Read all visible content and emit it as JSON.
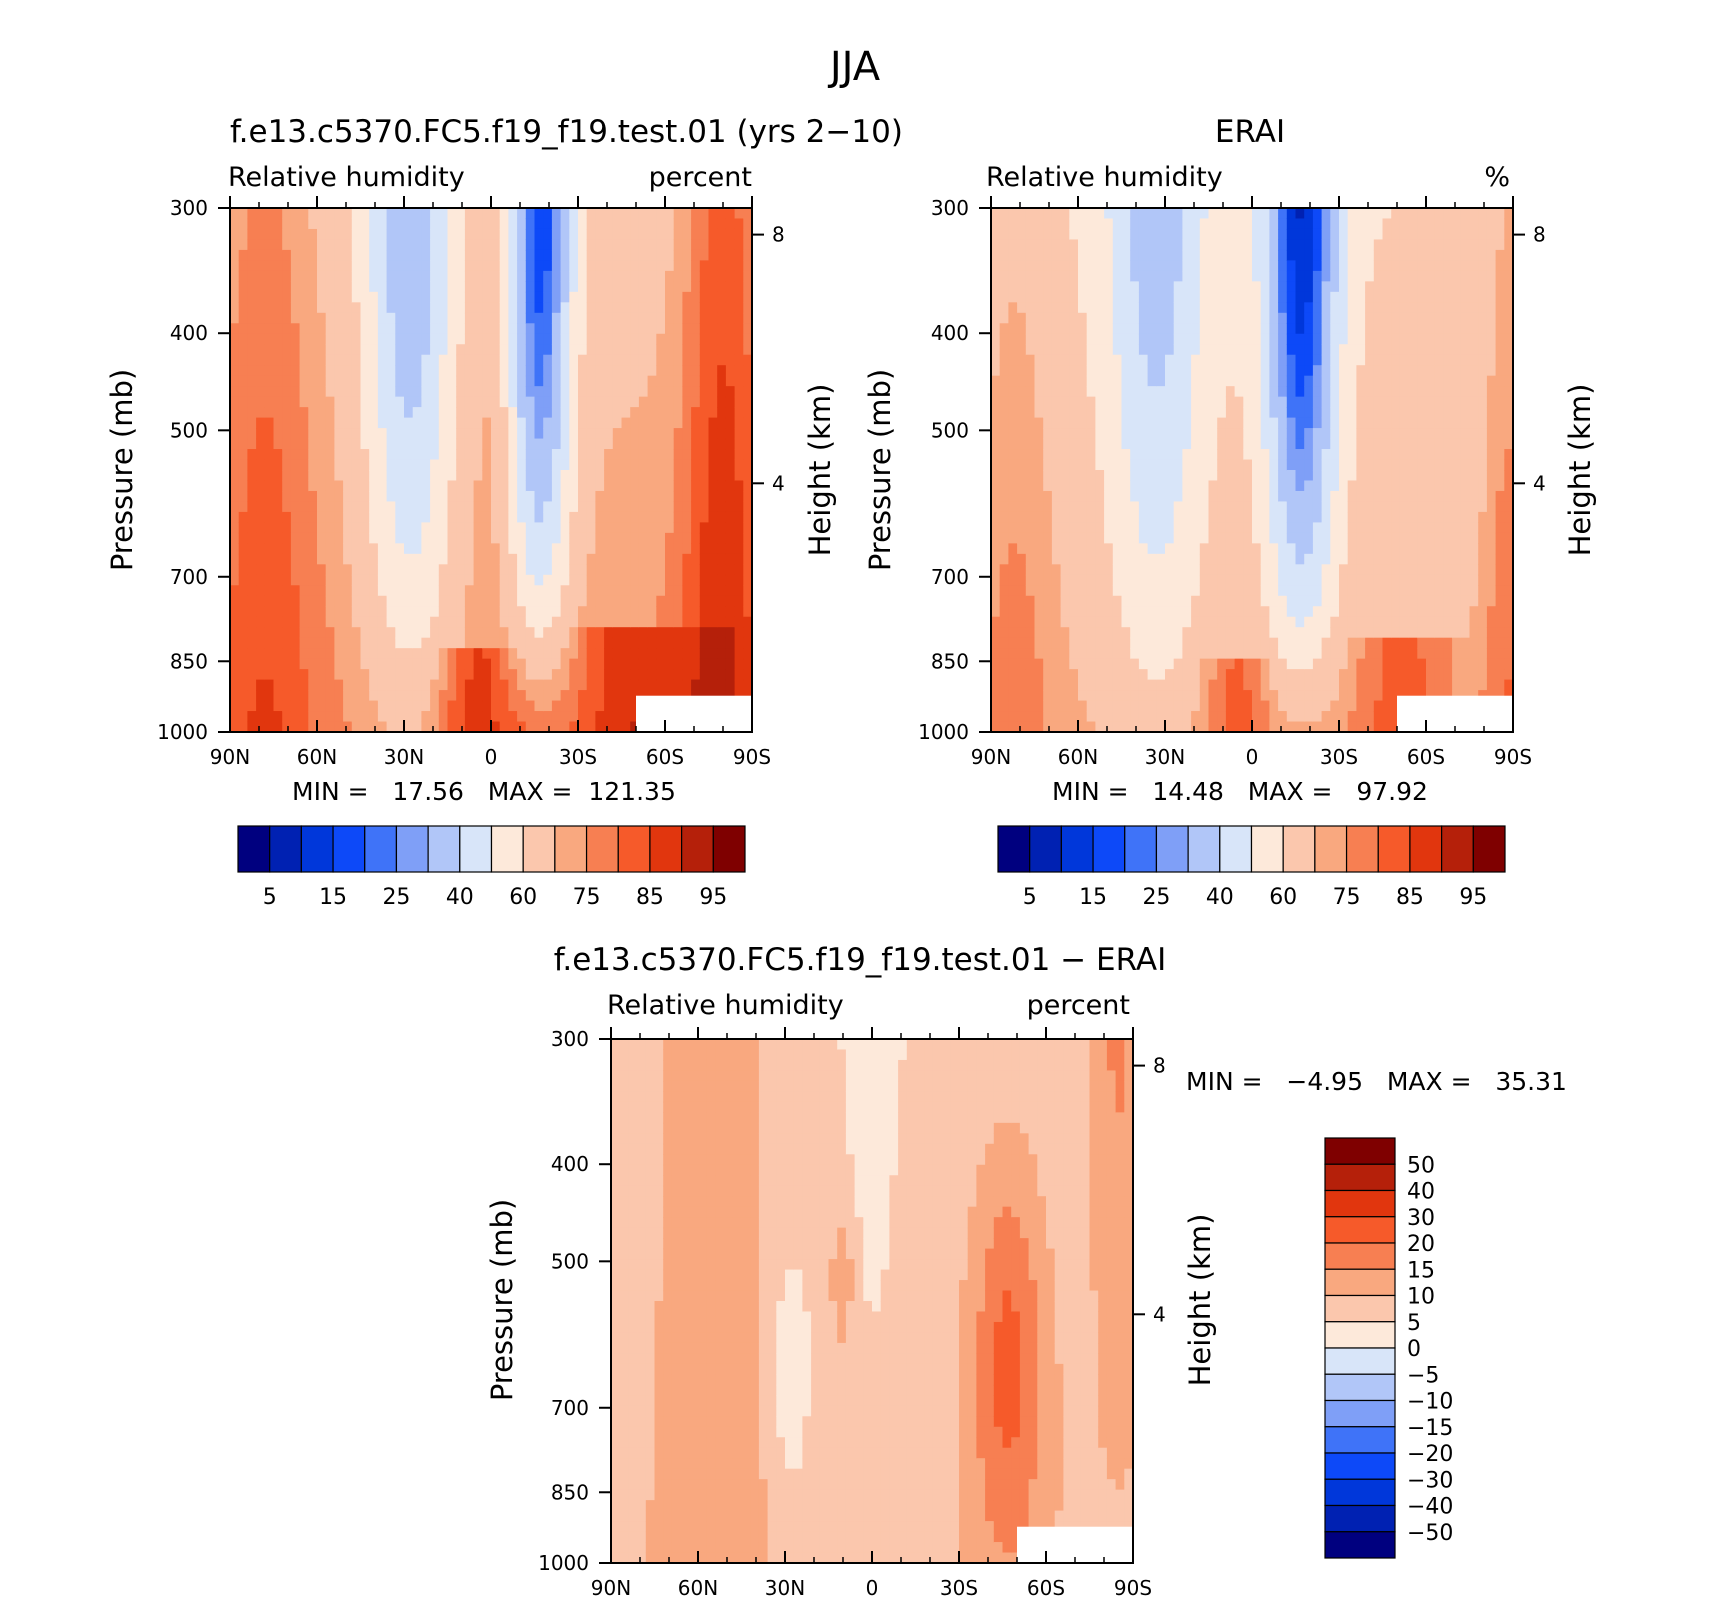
{
  "title": "JJA",
  "colors": {
    "abs_scale": [
      "#00007f",
      "#0021b2",
      "#0037da",
      "#0d49f8",
      "#3f73f8",
      "#7f9ff7",
      "#b1c6f8",
      "#d8e5f9",
      "#fde9da",
      "#fbc7ad",
      "#f9a87f",
      "#f77f52",
      "#f65a2a",
      "#e1360e",
      "#b5200a",
      "#7f0000"
    ],
    "diff_scale": [
      "#00007f",
      "#0021b2",
      "#0037da",
      "#0d49f8",
      "#3f73f8",
      "#7f9ff7",
      "#b1c6f8",
      "#d8e5f9",
      "#fde9da",
      "#fbc7ad",
      "#f9a87f",
      "#f77f52",
      "#f65a2a",
      "#e1360e",
      "#b5200a",
      "#7f0000"
    ]
  },
  "chart_data": [
    {
      "type": "heatmap",
      "panel": "model",
      "title": "f.e13.c5370.FC5.f19_f19.test.01 (yrs 2−10)",
      "left_label": "Relative humidity",
      "right_label": "percent",
      "xlabel": "",
      "ylabel": "Pressure (mb)",
      "y2label": "Height (km)",
      "x_ticks": [
        "90N",
        "60N",
        "30N",
        "0",
        "30S",
        "60S",
        "90S"
      ],
      "y_ticks": [
        "300",
        "400",
        "500",
        "700",
        "850",
        "1000"
      ],
      "y2_ticks": [
        "8",
        "4"
      ],
      "xlim": [
        90,
        -90
      ],
      "ylim": [
        1000,
        300
      ],
      "y_scale": "log",
      "min_text": "MIN =   17.56   MAX =  121.35",
      "min": 17.56,
      "max": 121.35,
      "colorbar_labels": [
        "5",
        "15",
        "25",
        "40",
        "60",
        "75",
        "85",
        "95"
      ],
      "levels": [
        5,
        10,
        15,
        20,
        25,
        30,
        40,
        50,
        60,
        70,
        75,
        80,
        85,
        90,
        95
      ]
    },
    {
      "type": "heatmap",
      "panel": "obs",
      "title": "ERAI",
      "left_label": "Relative humidity",
      "right_label": "%",
      "xlabel": "",
      "ylabel": "Pressure (mb)",
      "y2label": "Height (km)",
      "x_ticks": [
        "90N",
        "60N",
        "30N",
        "0",
        "30S",
        "60S",
        "90S"
      ],
      "y_ticks": [
        "300",
        "400",
        "500",
        "700",
        "850",
        "1000"
      ],
      "y2_ticks": [
        "8",
        "4"
      ],
      "xlim": [
        90,
        -90
      ],
      "ylim": [
        1000,
        300
      ],
      "y_scale": "log",
      "min_text": "MIN =   14.48   MAX =   97.92",
      "min": 14.48,
      "max": 97.92,
      "colorbar_labels": [
        "5",
        "15",
        "25",
        "40",
        "60",
        "75",
        "85",
        "95"
      ],
      "levels": [
        5,
        10,
        15,
        20,
        25,
        30,
        40,
        50,
        60,
        70,
        75,
        80,
        85,
        90,
        95
      ]
    },
    {
      "type": "heatmap",
      "panel": "diff",
      "title": "f.e13.c5370.FC5.f19_f19.test.01 − ERAI",
      "left_label": "Relative humidity",
      "right_label": "percent",
      "xlabel": "",
      "ylabel": "Pressure (mb)",
      "y2label": "Height (km)",
      "x_ticks": [
        "90N",
        "60N",
        "30N",
        "0",
        "30S",
        "60S",
        "90S"
      ],
      "y_ticks": [
        "300",
        "400",
        "500",
        "700",
        "850",
        "1000"
      ],
      "y2_ticks": [
        "8",
        "4"
      ],
      "xlim": [
        90,
        -90
      ],
      "ylim": [
        1000,
        300
      ],
      "y_scale": "log",
      "min_text": "MIN =   −4.95   MAX =   35.31",
      "min": -4.95,
      "max": 35.31,
      "colorbar_labels": [
        "50",
        "40",
        "30",
        "20",
        "15",
        "10",
        "5",
        "0",
        "−5",
        "−10",
        "−15",
        "−20",
        "−30",
        "−40",
        "−50"
      ],
      "levels": [
        -50,
        -40,
        -30,
        -20,
        -15,
        -10,
        -5,
        0,
        5,
        10,
        15,
        20,
        30,
        40,
        50
      ]
    }
  ]
}
